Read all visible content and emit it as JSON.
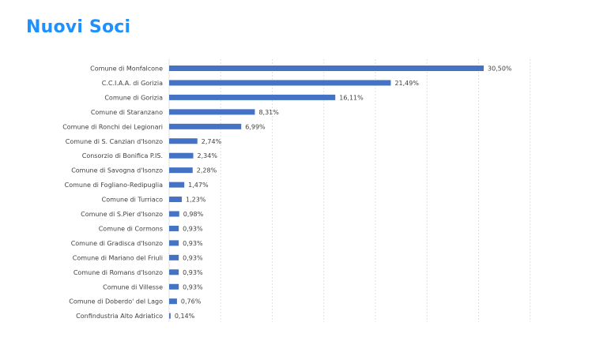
{
  "title": "Nuovi Soci",
  "colors": {
    "title": "#1E90FF",
    "bar": "#4472C4",
    "grid": "#D9D9D9",
    "text": "#404040"
  },
  "chart_data": {
    "type": "bar",
    "orientation": "horizontal",
    "title": "",
    "xlabel": "",
    "ylabel": "",
    "xlim": [
      0,
      35
    ],
    "grid": true,
    "legend": "none",
    "categories": [
      "Comune di Monfalcone",
      "C.C.I.A.A. di Gorizia",
      "Comune di Gorizia",
      "Comune di Staranzano",
      "Comune di Ronchi dei Legionari",
      "Comune di S. Canzian d'Isonzo",
      "Consorzio di Bonifica P.IS.",
      "Comune di Savogna d'Isonzo",
      "Comune di Fogliano-Redipuglia",
      "Comune di Turriaco",
      "Comune di S.Pier d'Isonzo",
      "Comune di Cormons",
      "Comune di Gradisca d'Isonzo",
      "Comune di Mariano del Friuli",
      "Comune di Romans d'Isonzo",
      "Comune di Villesse",
      "Comune di Doberdo' del Lago",
      "Confindustria Alto Adriatico"
    ],
    "values": [
      30.5,
      21.49,
      16.11,
      8.31,
      6.99,
      2.74,
      2.34,
      2.28,
      1.47,
      1.23,
      0.98,
      0.93,
      0.93,
      0.93,
      0.93,
      0.93,
      0.76,
      0.14
    ],
    "value_labels": [
      "30,50%",
      "21,49%",
      "16,11%",
      "8,31%",
      "6,99%",
      "2,74%",
      "2,34%",
      "2,28%",
      "1,47%",
      "1,23%",
      "0,98%",
      "0,93%",
      "0,93%",
      "0,93%",
      "0,93%",
      "0,93%",
      "0,76%",
      "0,14%"
    ]
  }
}
